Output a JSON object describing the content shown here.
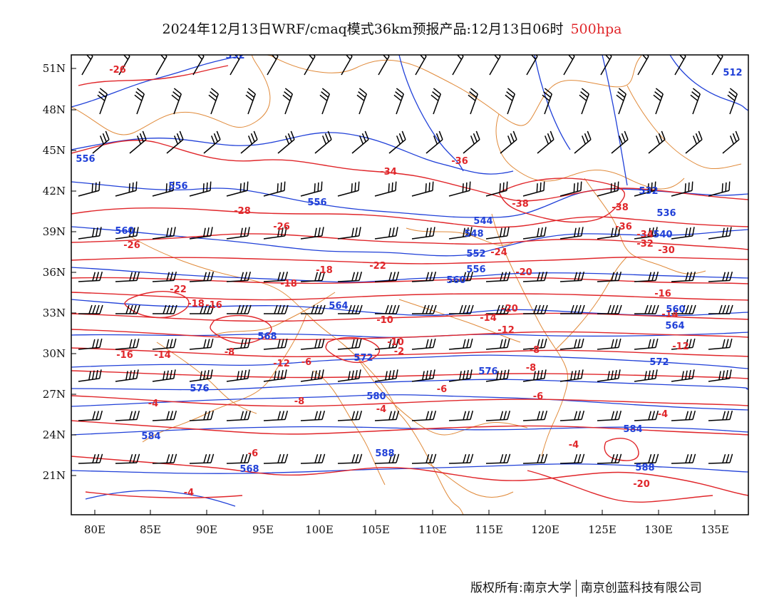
{
  "title": {
    "main": "2024年12月13日WRF/cmaq模式36km预报产品:12月13日06时",
    "level": "500hpa"
  },
  "axes": {
    "lat_labels": [
      "51N",
      "48N",
      "45N",
      "42N",
      "39N",
      "36N",
      "33N",
      "30N",
      "27N",
      "24N",
      "21N"
    ],
    "lon_labels": [
      "80E",
      "85E",
      "90E",
      "95E",
      "100E",
      "105E",
      "110E",
      "115E",
      "120E",
      "125E",
      "130E",
      "135E"
    ]
  },
  "colors": {
    "temperature": "#e0262a",
    "height": "#2040d8",
    "borders": "#e08a3a",
    "wind": "#000000"
  },
  "temperature_labels": [
    "-26",
    "-34",
    "-36",
    "-38",
    "-28",
    "-26",
    "-26",
    "-36",
    "-38",
    "-34",
    "-32",
    "-30",
    "-24",
    "-22",
    "-20",
    "-18",
    "-22",
    "-18",
    "-20",
    "-18",
    "-16",
    "-14",
    "-12",
    "-10",
    "-8",
    "-10",
    "-6",
    "-4",
    "-2",
    "-12",
    "-8",
    "-6",
    "-16",
    "-14",
    "-12",
    "-8",
    "-6",
    "-4",
    "-8",
    "-4",
    "-6",
    "-4",
    "-4",
    "-20",
    "-16",
    "-14"
  ],
  "height_labels": [
    "552",
    "512",
    "556",
    "556",
    "556",
    "560",
    "544",
    "548",
    "552",
    "556",
    "560",
    "564",
    "568",
    "572",
    "576",
    "580",
    "584",
    "588",
    "540",
    "532",
    "536",
    "568",
    "576",
    "572",
    "584",
    "588",
    "560",
    "564"
  ],
  "footer": {
    "left": "版权所有:南京大学",
    "right": "南京创蓝科技有限公司"
  }
}
